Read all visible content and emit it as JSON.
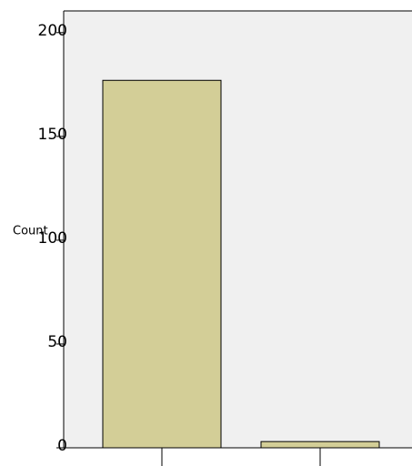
{
  "chart_data": {
    "type": "bar",
    "ylabel": "Count",
    "categories": [
      null,
      null
    ],
    "values": [
      177,
      3
    ],
    "color": "#d3ce97",
    "ylim": [
      0,
      210
    ],
    "yticks": [
      0,
      50,
      100,
      150,
      200
    ],
    "grid": false
  }
}
